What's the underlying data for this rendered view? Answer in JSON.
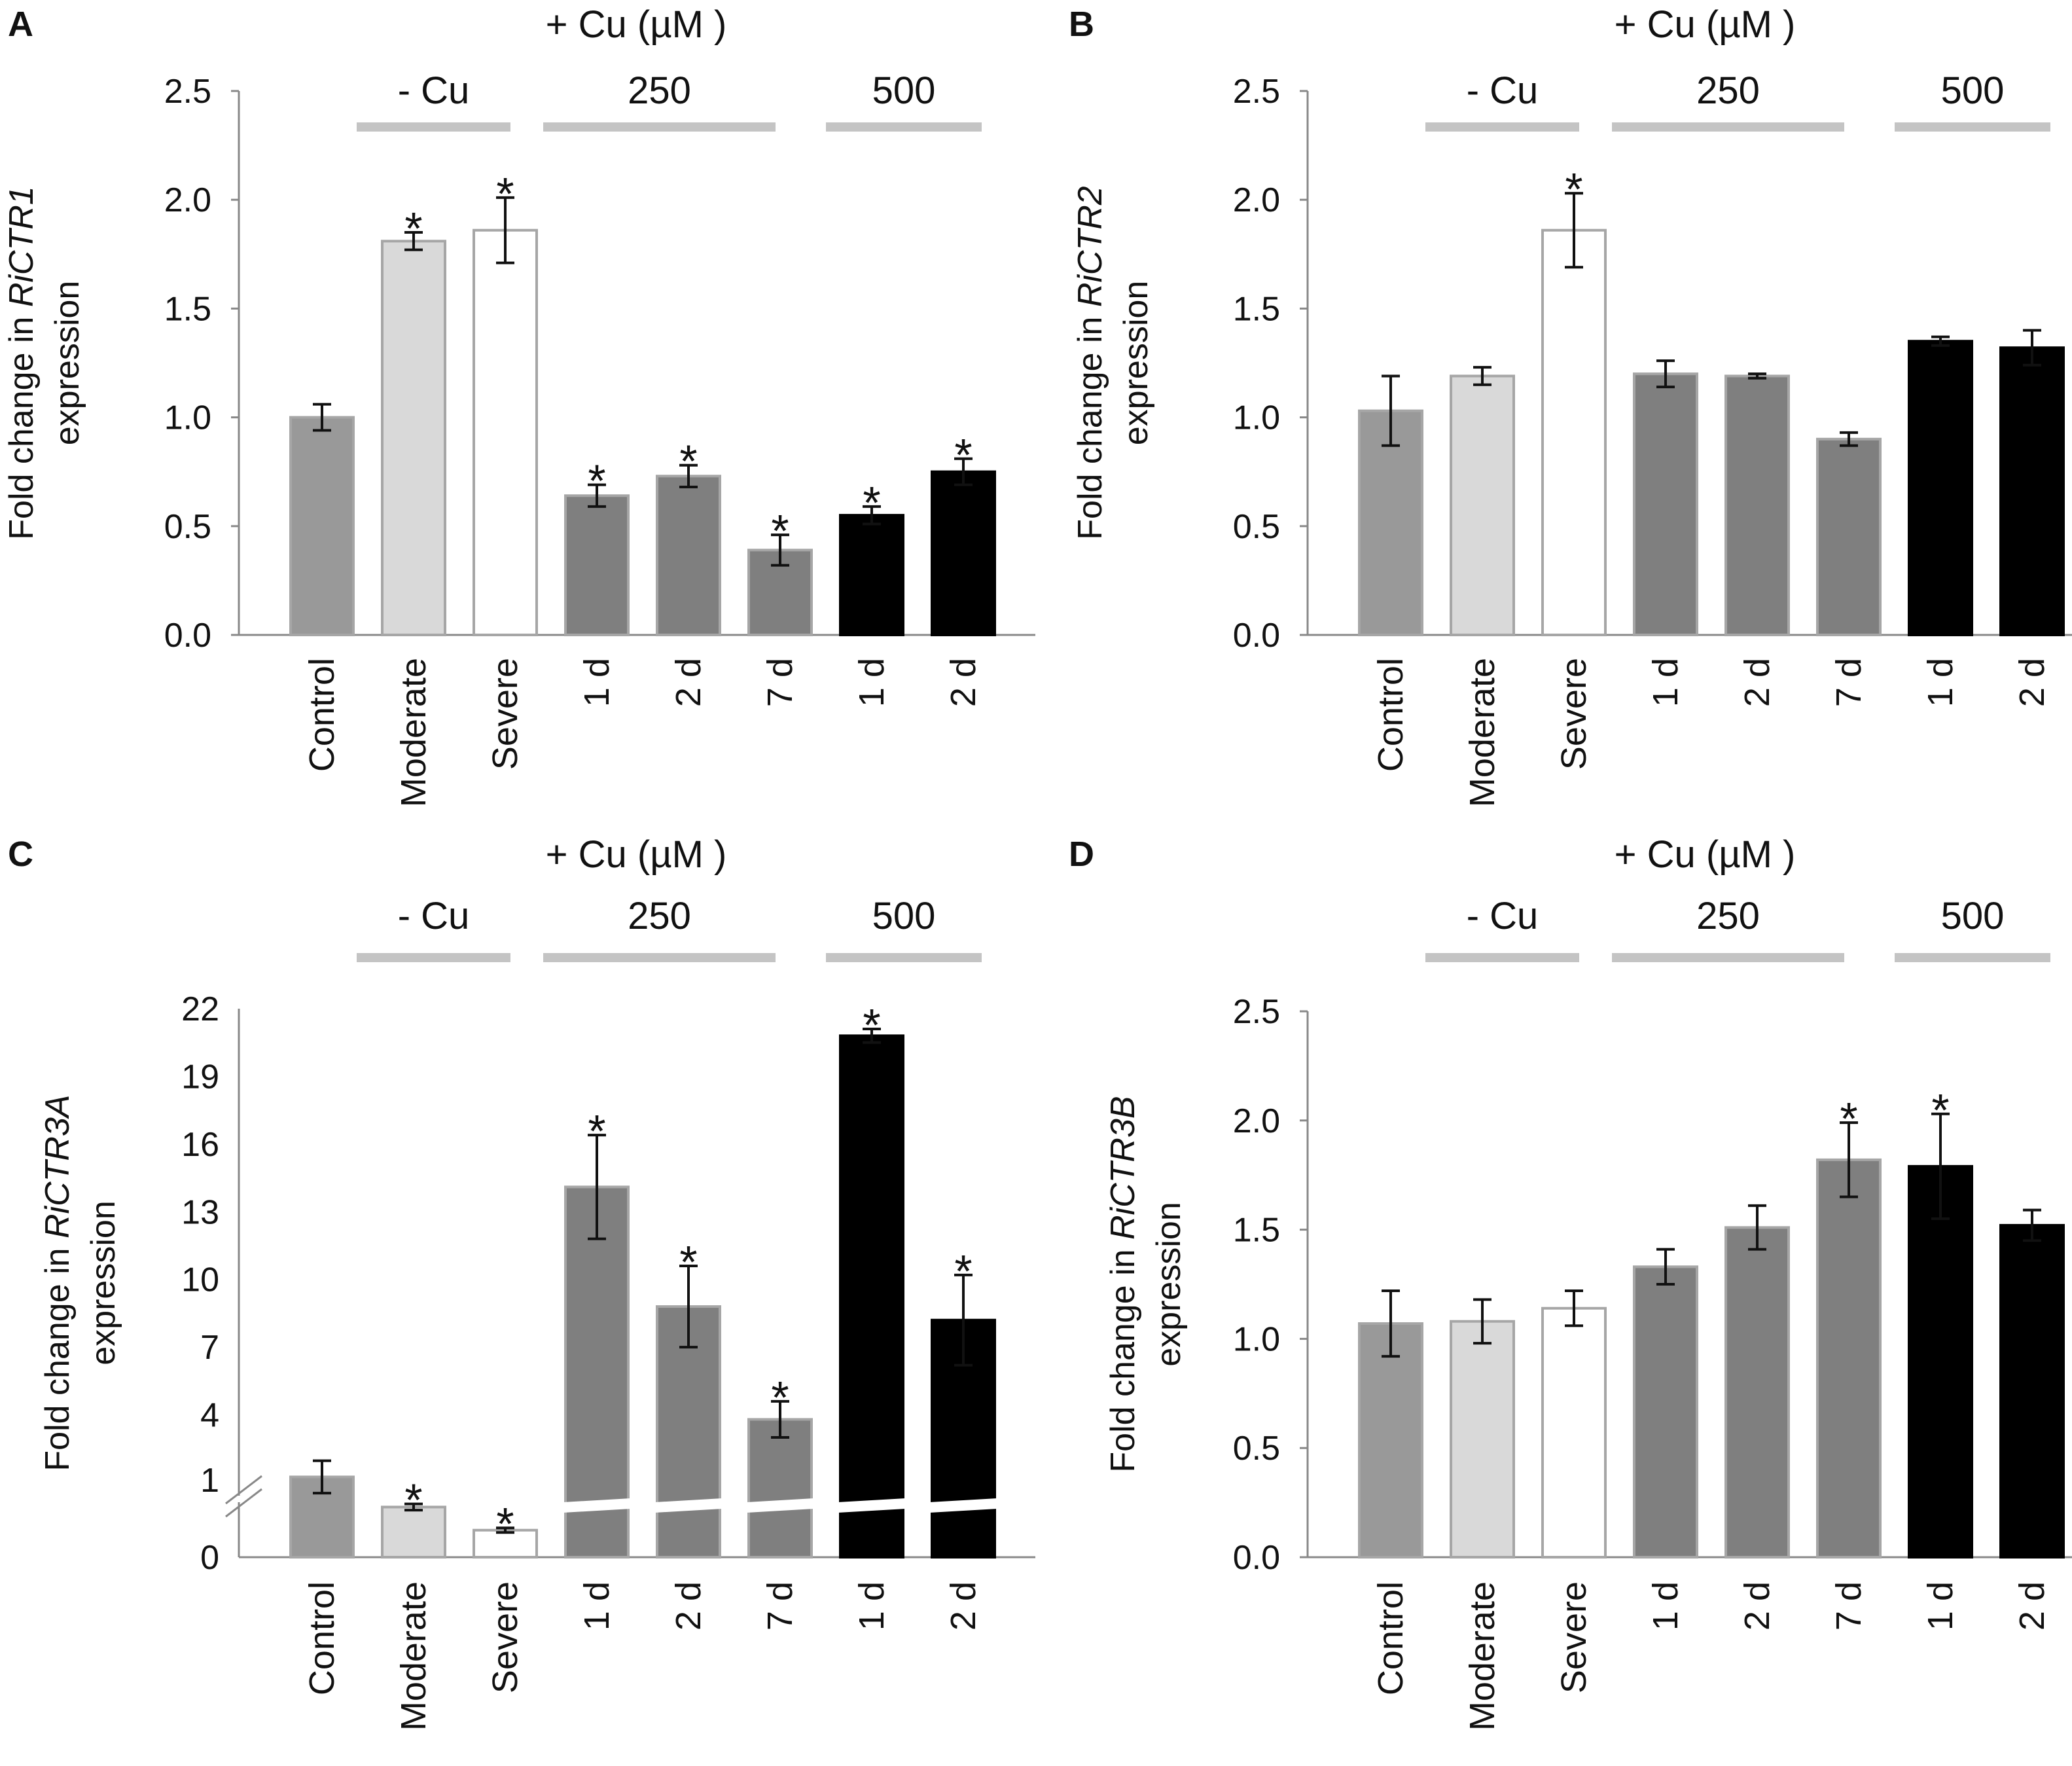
{
  "colors": {
    "control": "#999999",
    "moderate": "#d9d9d9",
    "severe": "#ffffff",
    "cu250": "#7f7f7f",
    "cu500": "#000000",
    "outline": "#a6a6a6",
    "group_line": "#c4c4c4"
  },
  "chart_data": [
    {
      "panel": "A",
      "type": "bar",
      "title": "",
      "treatment_header": "+ Cu (µM )",
      "groups": [
        {
          "label": "- Cu",
          "categories": [
            1,
            2
          ]
        },
        {
          "label": "250",
          "categories": [
            3,
            4,
            5
          ]
        },
        {
          "label": "500",
          "categories": [
            6,
            7
          ]
        }
      ],
      "categories": [
        "Control",
        "Moderate",
        "Severe",
        "1 d",
        "2 d",
        "7 d",
        "1 d",
        "2 d"
      ],
      "bar_colors": [
        "control",
        "moderate",
        "severe",
        "cu250",
        "cu250",
        "cu250",
        "cu500",
        "cu500"
      ],
      "values": [
        1.0,
        1.81,
        1.86,
        0.64,
        0.73,
        0.39,
        0.55,
        0.75
      ],
      "errors": [
        0.06,
        0.04,
        0.15,
        0.05,
        0.05,
        0.07,
        0.04,
        0.06
      ],
      "significant": [
        false,
        true,
        true,
        true,
        true,
        true,
        true,
        true
      ],
      "ylabel_prefix": "Fold change in ",
      "ylabel_gene": "RiCTR1",
      "ylabel_suffix": "expression",
      "ylim": [
        0,
        2.5
      ],
      "yticks": [
        "0.0",
        "0.5",
        "1.0",
        "1.5",
        "2.0",
        "2.5"
      ],
      "xlabel": ""
    },
    {
      "panel": "B",
      "type": "bar",
      "title": "",
      "treatment_header": "+ Cu (µM )",
      "groups": [
        {
          "label": "- Cu",
          "categories": [
            1,
            2
          ]
        },
        {
          "label": "250",
          "categories": [
            3,
            4,
            5
          ]
        },
        {
          "label": "500",
          "categories": [
            6,
            7
          ]
        }
      ],
      "categories": [
        "Control",
        "Moderate",
        "Severe",
        "1 d",
        "2 d",
        "7 d",
        "1 d",
        "2 d"
      ],
      "bar_colors": [
        "control",
        "moderate",
        "severe",
        "cu250",
        "cu250",
        "cu250",
        "cu500",
        "cu500"
      ],
      "values": [
        1.03,
        1.19,
        1.86,
        1.2,
        1.19,
        0.9,
        1.35,
        1.32
      ],
      "errors": [
        0.16,
        0.04,
        0.17,
        0.06,
        0.01,
        0.03,
        0.02,
        0.08
      ],
      "significant": [
        false,
        false,
        true,
        false,
        false,
        false,
        false,
        false
      ],
      "ylabel_prefix": "Fold change in ",
      "ylabel_gene": "RiCTR2",
      "ylabel_suffix": "expression",
      "ylim": [
        0,
        2.5
      ],
      "yticks": [
        "0.0",
        "0.5",
        "1.0",
        "1.5",
        "2.0",
        "2.5"
      ],
      "xlabel": ""
    },
    {
      "panel": "C",
      "type": "bar",
      "title": "",
      "treatment_header": "+ Cu (µM )",
      "groups": [
        {
          "label": "- Cu",
          "categories": [
            1,
            2
          ]
        },
        {
          "label": "250",
          "categories": [
            3,
            4,
            5
          ]
        },
        {
          "label": "500",
          "categories": [
            6,
            7
          ]
        }
      ],
      "categories": [
        "Control",
        "Moderate",
        "Severe",
        "1 d",
        "2 d",
        "7 d",
        "1 d",
        "2 d"
      ],
      "bar_colors": [
        "control",
        "moderate",
        "severe",
        "cu250",
        "cu250",
        "cu250",
        "cu500",
        "cu500"
      ],
      "values": [
        1.04,
        0.65,
        0.35,
        14.1,
        8.8,
        3.8,
        20.8,
        8.2
      ],
      "errors": [
        0.21,
        0.04,
        0.03,
        2.3,
        1.8,
        0.8,
        0.3,
        2.0
      ],
      "significant": [
        false,
        true,
        true,
        true,
        true,
        true,
        true,
        true
      ],
      "ylabel_prefix": "Fold change in ",
      "ylabel_gene": "RiCTR3A",
      "ylabel_suffix": "expression",
      "axis_break": true,
      "lower_ylim": [
        0,
        1.9
      ],
      "lower_yticks": [
        "0",
        "1"
      ],
      "upper_ylim": [
        1,
        22
      ],
      "upper_yticks": [
        "4",
        "7",
        "10",
        "13",
        "16",
        "19",
        "22"
      ],
      "xlabel": ""
    },
    {
      "panel": "D",
      "type": "bar",
      "title": "",
      "treatment_header": "+ Cu (µM )",
      "groups": [
        {
          "label": "- Cu",
          "categories": [
            1,
            2
          ]
        },
        {
          "label": "250",
          "categories": [
            3,
            4,
            5
          ]
        },
        {
          "label": "500",
          "categories": [
            6,
            7
          ]
        }
      ],
      "categories": [
        "Control",
        "Moderate",
        "Severe",
        "1 d",
        "2 d",
        "7 d",
        "1 d",
        "2 d"
      ],
      "bar_colors": [
        "control",
        "moderate",
        "severe",
        "cu250",
        "cu250",
        "cu250",
        "cu500",
        "cu500"
      ],
      "values": [
        1.07,
        1.08,
        1.14,
        1.33,
        1.51,
        1.82,
        1.79,
        1.52
      ],
      "errors": [
        0.15,
        0.1,
        0.08,
        0.08,
        0.1,
        0.17,
        0.24,
        0.07
      ],
      "significant": [
        false,
        false,
        false,
        false,
        false,
        true,
        true,
        false
      ],
      "ylabel_prefix": "Fold change in ",
      "ylabel_gene": "RiCTR3B",
      "ylabel_suffix": "expression",
      "ylim": [
        0,
        2.5
      ],
      "yticks": [
        "0.0",
        "0.5",
        "1.0",
        "1.5",
        "2.0",
        "2.5"
      ],
      "xlabel": ""
    }
  ]
}
